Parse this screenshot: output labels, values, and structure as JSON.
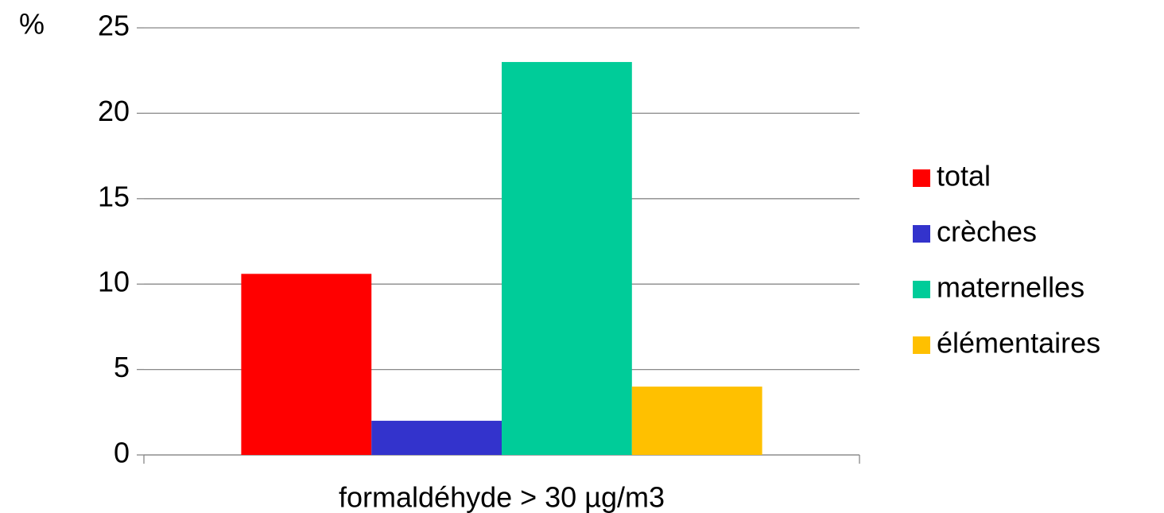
{
  "chart_data": {
    "type": "bar",
    "y_label": "%",
    "categories": [
      "formaldéhyde > 30 µg/m3"
    ],
    "series": [
      {
        "name": "total",
        "color": "#ff0000",
        "values": [
          10.6
        ]
      },
      {
        "name": "crèches",
        "color": "#3333cc",
        "values": [
          2
        ]
      },
      {
        "name": "maternelles",
        "color": "#00cc99",
        "values": [
          23
        ]
      },
      {
        "name": "élémentaires",
        "color": "#ffc000",
        "values": [
          4
        ]
      }
    ],
    "ylim": [
      0,
      25
    ],
    "yticks": [
      0,
      5,
      10,
      15,
      20,
      25
    ],
    "grid": true,
    "legend": "right"
  }
}
